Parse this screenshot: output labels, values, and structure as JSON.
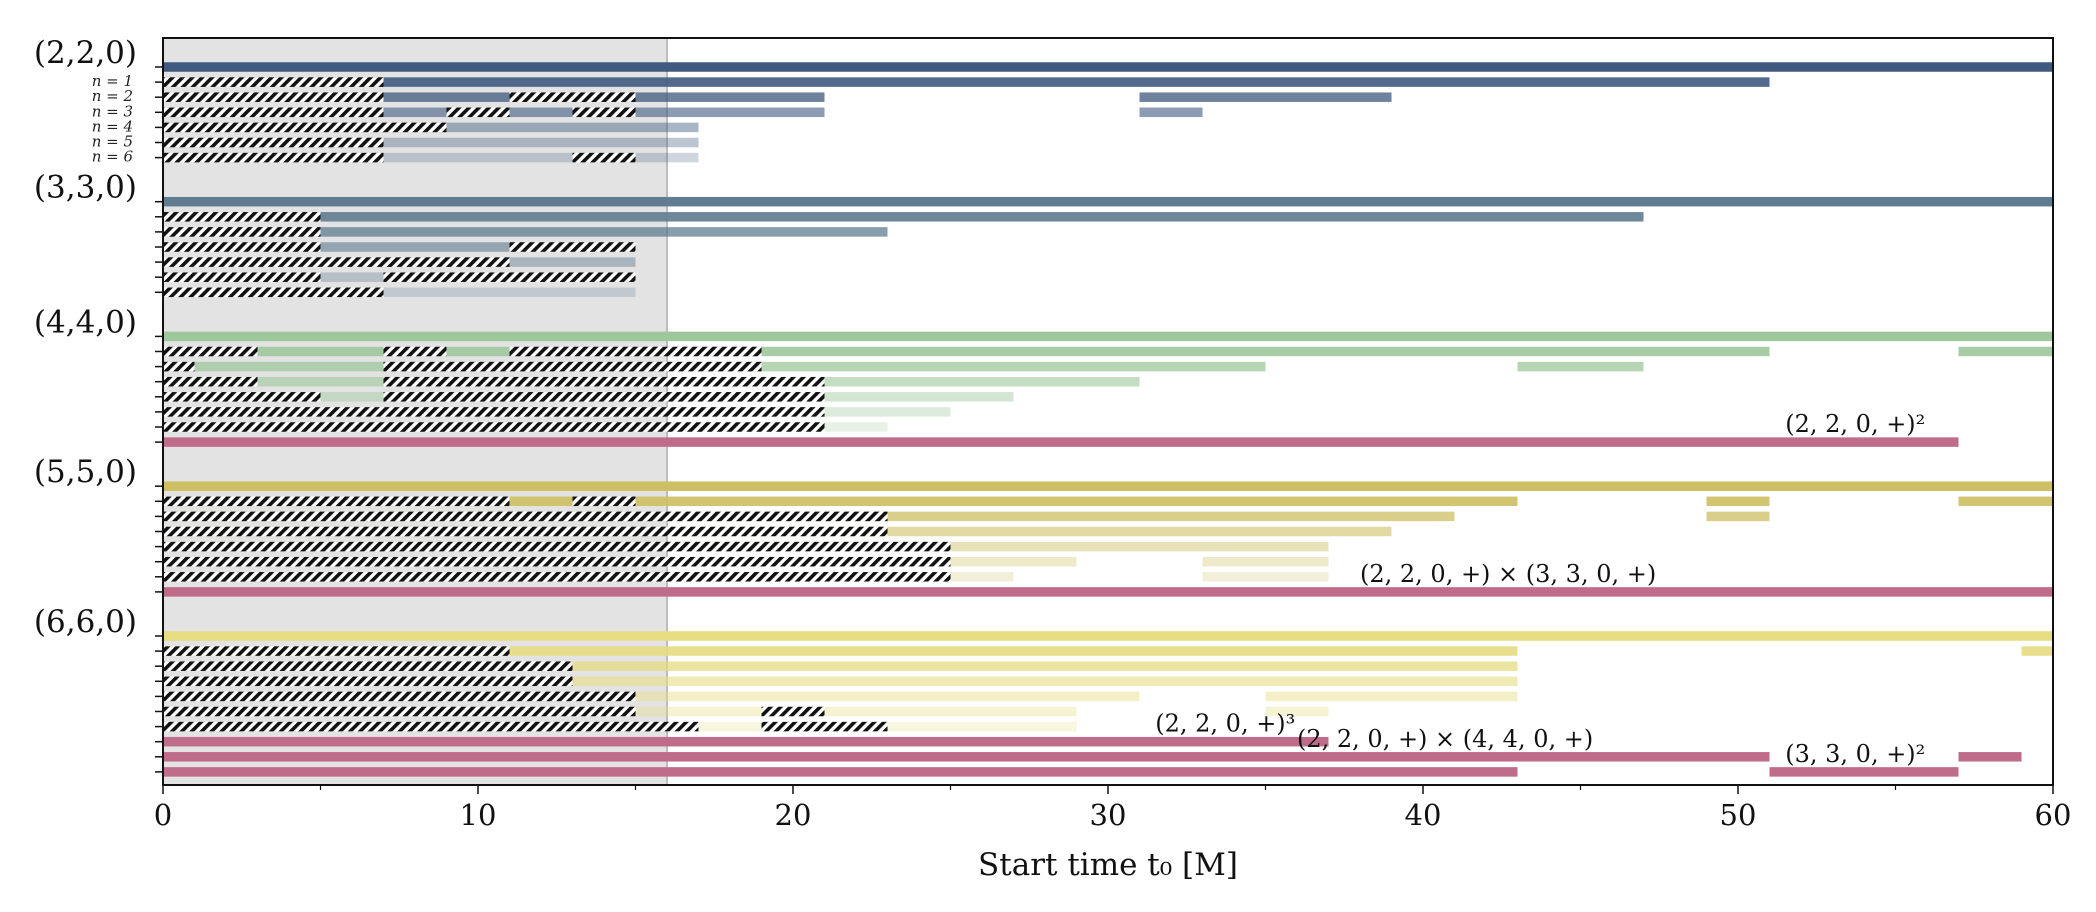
{
  "chart_data": {
    "type": "bar",
    "subtype": "horizontal-interval-timeline",
    "xlabel": "Start time t₀ [M]",
    "xlim": [
      0,
      60
    ],
    "xticks": [
      0,
      10,
      20,
      30,
      40,
      50,
      60
    ],
    "shaded_region": [
      0,
      16
    ],
    "colors": {
      "g220": "#3f5a7e",
      "g330": "#5f7c90",
      "g440": "#9ec79b",
      "g550": "#cdbf63",
      "g660": "#e6dc82",
      "quad": "#bf6c8a",
      "hatch": "#111111",
      "shade": "#e3e3e3"
    },
    "groups": [
      {
        "label": "(2,2,0)",
        "color_key": "g220",
        "rows": [
          {
            "label": "",
            "opacity": 1.0,
            "intervals": [
              [
                0,
                60
              ]
            ],
            "hatched": []
          },
          {
            "label": "n = 1",
            "opacity": 0.9,
            "intervals": [
              [
                0,
                51
              ]
            ],
            "hatched": [
              [
                0,
                7
              ]
            ]
          },
          {
            "label": "n = 2",
            "opacity": 0.75,
            "intervals": [
              [
                0,
                21
              ],
              [
                31,
                39
              ]
            ],
            "hatched": [
              [
                0,
                7
              ],
              [
                11,
                15
              ]
            ]
          },
          {
            "label": "n = 3",
            "opacity": 0.6,
            "intervals": [
              [
                0,
                21
              ],
              [
                31,
                33
              ]
            ],
            "hatched": [
              [
                0,
                7
              ],
              [
                9,
                11
              ],
              [
                13,
                15
              ]
            ]
          },
          {
            "label": "n = 4",
            "opacity": 0.45,
            "intervals": [
              [
                0,
                17
              ]
            ],
            "hatched": [
              [
                0,
                9
              ]
            ]
          },
          {
            "label": "n = 5",
            "opacity": 0.35,
            "intervals": [
              [
                0,
                17
              ]
            ],
            "hatched": [
              [
                0,
                7
              ]
            ]
          },
          {
            "label": "n = 6",
            "opacity": 0.25,
            "intervals": [
              [
                0,
                17
              ]
            ],
            "hatched": [
              [
                0,
                7
              ],
              [
                13,
                15
              ]
            ]
          }
        ]
      },
      {
        "label": "(3,3,0)",
        "color_key": "g330",
        "rows": [
          {
            "label": "",
            "opacity": 1.0,
            "intervals": [
              [
                0,
                60
              ]
            ],
            "hatched": []
          },
          {
            "label": "",
            "opacity": 0.9,
            "intervals": [
              [
                0,
                47
              ]
            ],
            "hatched": [
              [
                0,
                5
              ]
            ]
          },
          {
            "label": "",
            "opacity": 0.75,
            "intervals": [
              [
                0,
                23
              ]
            ],
            "hatched": [
              [
                0,
                5
              ]
            ]
          },
          {
            "label": "",
            "opacity": 0.6,
            "intervals": [
              [
                0,
                15
              ]
            ],
            "hatched": [
              [
                0,
                5
              ],
              [
                11,
                15
              ]
            ]
          },
          {
            "label": "",
            "opacity": 0.45,
            "intervals": [
              [
                0,
                15
              ]
            ],
            "hatched": [
              [
                0,
                11
              ]
            ]
          },
          {
            "label": "",
            "opacity": 0.35,
            "intervals": [
              [
                0,
                15
              ]
            ],
            "hatched": [
              [
                0,
                5
              ],
              [
                7,
                15
              ]
            ]
          },
          {
            "label": "",
            "opacity": 0.25,
            "intervals": [
              [
                0,
                15
              ]
            ],
            "hatched": [
              [
                0,
                7
              ]
            ]
          }
        ]
      },
      {
        "label": "(4,4,0)",
        "color_key": "g440",
        "rows": [
          {
            "label": "",
            "opacity": 1.0,
            "intervals": [
              [
                0,
                60
              ]
            ],
            "hatched": []
          },
          {
            "label": "",
            "opacity": 0.9,
            "intervals": [
              [
                0,
                51
              ],
              [
                57,
                60
              ]
            ],
            "hatched": [
              [
                0,
                3
              ],
              [
                7,
                9
              ],
              [
                11,
                19
              ]
            ]
          },
          {
            "label": "",
            "opacity": 0.75,
            "intervals": [
              [
                0,
                35
              ],
              [
                43,
                47
              ]
            ],
            "hatched": [
              [
                0,
                1
              ],
              [
                7,
                19
              ]
            ]
          },
          {
            "label": "",
            "opacity": 0.6,
            "intervals": [
              [
                0,
                31
              ]
            ],
            "hatched": [
              [
                0,
                3
              ],
              [
                7,
                21
              ]
            ]
          },
          {
            "label": "",
            "opacity": 0.45,
            "intervals": [
              [
                0,
                27
              ]
            ],
            "hatched": [
              [
                0,
                5
              ],
              [
                7,
                21
              ]
            ]
          },
          {
            "label": "",
            "opacity": 0.35,
            "intervals": [
              [
                0,
                25
              ]
            ],
            "hatched": [
              [
                0,
                21
              ]
            ]
          },
          {
            "label": "",
            "opacity": 0.25,
            "intervals": [
              [
                0,
                23
              ]
            ],
            "hatched": [
              [
                0,
                21
              ]
            ]
          }
        ],
        "quadratic": [
          {
            "annotation": "(2, 2, 0, +)²",
            "annot_x": 51.5,
            "intervals": [
              [
                0,
                57
              ]
            ]
          }
        ]
      },
      {
        "label": "(5,5,0)",
        "color_key": "g550",
        "rows": [
          {
            "label": "",
            "opacity": 1.0,
            "intervals": [
              [
                0,
                60
              ]
            ],
            "hatched": []
          },
          {
            "label": "",
            "opacity": 0.9,
            "intervals": [
              [
                0,
                43
              ],
              [
                49,
                51
              ],
              [
                57,
                60
              ]
            ],
            "hatched": [
              [
                0,
                11
              ],
              [
                13,
                15
              ]
            ]
          },
          {
            "label": "",
            "opacity": 0.75,
            "intervals": [
              [
                0,
                41
              ],
              [
                49,
                51
              ]
            ],
            "hatched": [
              [
                0,
                23
              ]
            ]
          },
          {
            "label": "",
            "opacity": 0.6,
            "intervals": [
              [
                0,
                39
              ]
            ],
            "hatched": [
              [
                0,
                23
              ]
            ]
          },
          {
            "label": "",
            "opacity": 0.45,
            "intervals": [
              [
                0,
                37
              ]
            ],
            "hatched": [
              [
                0,
                25
              ]
            ]
          },
          {
            "label": "",
            "opacity": 0.35,
            "intervals": [
              [
                0,
                29
              ],
              [
                33,
                37
              ]
            ],
            "hatched": [
              [
                0,
                25
              ]
            ]
          },
          {
            "label": "",
            "opacity": 0.25,
            "intervals": [
              [
                0,
                27
              ],
              [
                33,
                37
              ]
            ],
            "hatched": [
              [
                0,
                25
              ]
            ]
          }
        ],
        "quadratic": [
          {
            "annotation": "(2, 2, 0, +) × (3, 3, 0, +)",
            "annot_x": 38.0,
            "intervals": [
              [
                0,
                60
              ]
            ]
          }
        ]
      },
      {
        "label": "(6,6,0)",
        "color_key": "g660",
        "rows": [
          {
            "label": "",
            "opacity": 1.0,
            "intervals": [
              [
                0,
                60
              ]
            ],
            "hatched": []
          },
          {
            "label": "",
            "opacity": 0.9,
            "intervals": [
              [
                0,
                43
              ],
              [
                59,
                60
              ]
            ],
            "hatched": [
              [
                0,
                11
              ]
            ]
          },
          {
            "label": "",
            "opacity": 0.75,
            "intervals": [
              [
                0,
                43
              ]
            ],
            "hatched": [
              [
                0,
                13
              ]
            ]
          },
          {
            "label": "",
            "opacity": 0.6,
            "intervals": [
              [
                0,
                43
              ]
            ],
            "hatched": [
              [
                0,
                13
              ]
            ]
          },
          {
            "label": "",
            "opacity": 0.45,
            "intervals": [
              [
                0,
                31
              ],
              [
                35,
                43
              ]
            ],
            "hatched": [
              [
                0,
                15
              ]
            ]
          },
          {
            "label": "",
            "opacity": 0.35,
            "intervals": [
              [
                0,
                29
              ],
              [
                35,
                37
              ]
            ],
            "hatched": [
              [
                0,
                15
              ],
              [
                19,
                21
              ]
            ]
          },
          {
            "label": "",
            "opacity": 0.25,
            "intervals": [
              [
                0,
                29
              ]
            ],
            "hatched": [
              [
                0,
                17
              ],
              [
                19,
                23
              ]
            ]
          }
        ],
        "quadratic": [
          {
            "annotation": "(2, 2, 0, +)³",
            "annot_x": 31.5,
            "intervals": [
              [
                0,
                37
              ]
            ]
          },
          {
            "annotation": "(2, 2, 0, +) × (4, 4, 0, +)",
            "annot_x": 36.0,
            "intervals": [
              [
                0,
                51
              ],
              [
                57,
                59
              ]
            ]
          },
          {
            "annotation": "(3, 3, 0, +)²",
            "annot_x": 51.5,
            "intervals": [
              [
                0,
                43
              ],
              [
                51,
                57
              ]
            ]
          }
        ]
      }
    ]
  }
}
